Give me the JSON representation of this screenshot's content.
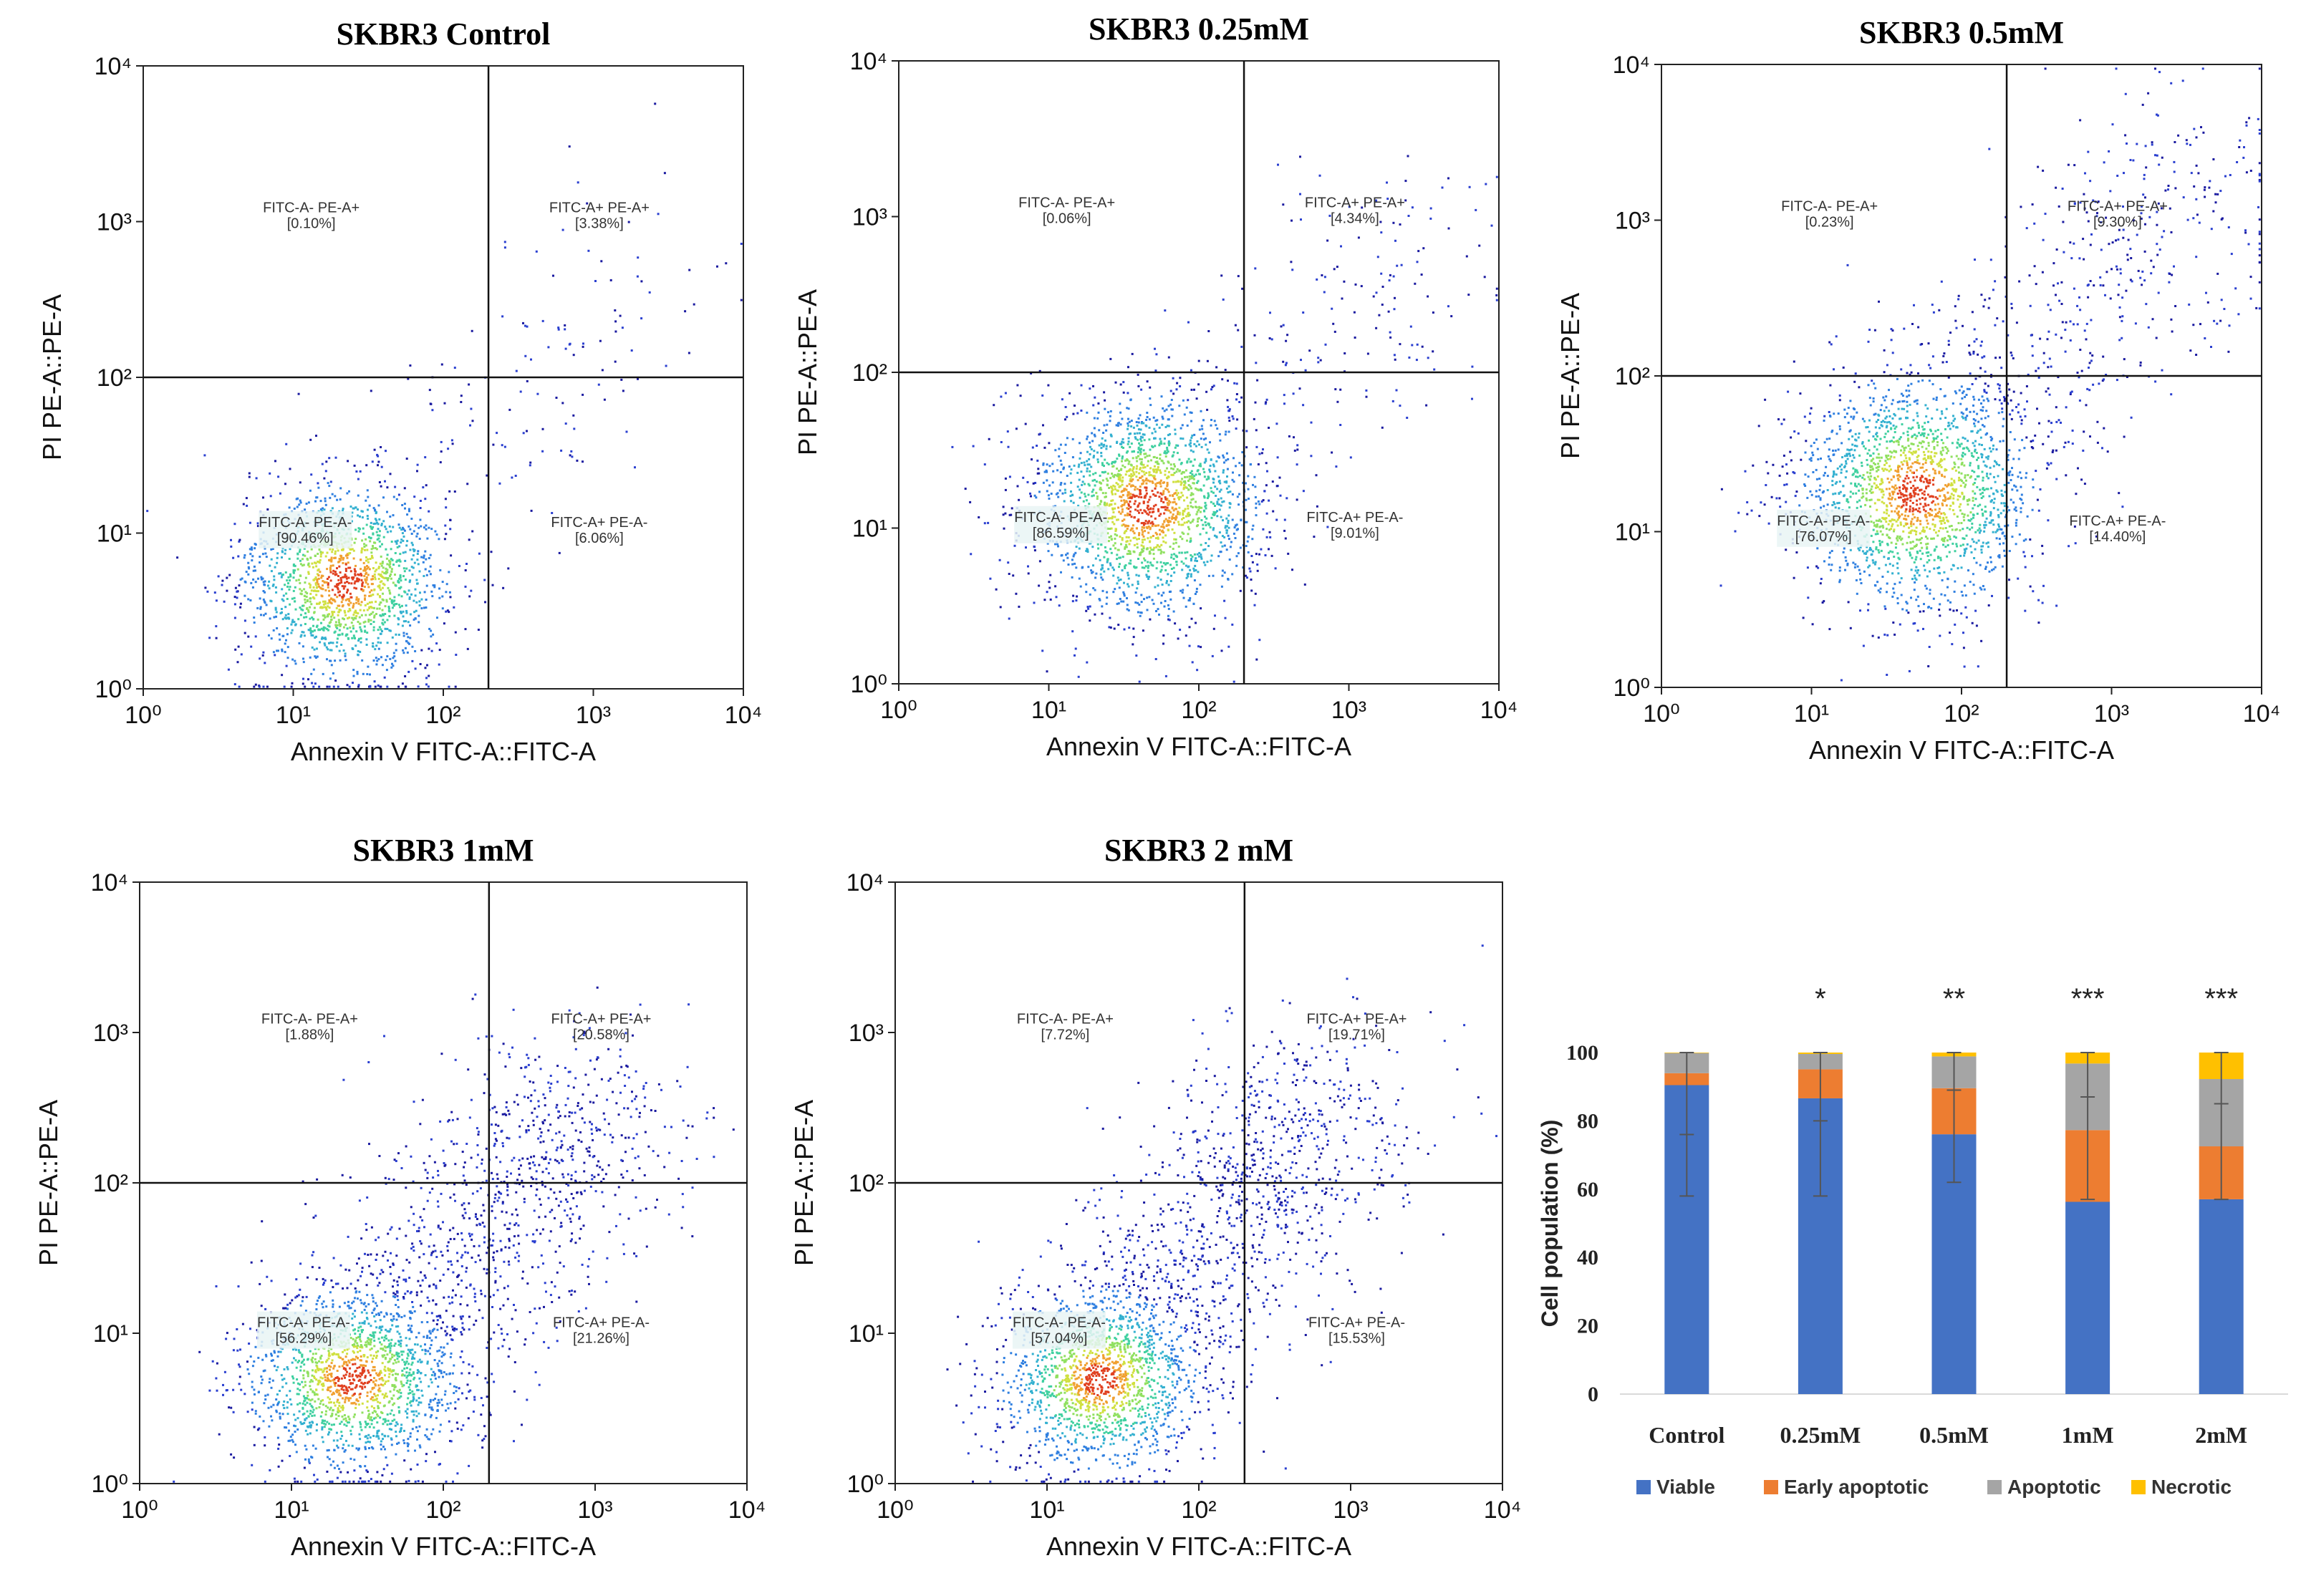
{
  "chart_data": [
    {
      "type": "scatter",
      "title": "SKBR3 Control",
      "xlabel": "Annexin V FITC-A::FITC-A",
      "ylabel": "PI PE-A::PE-A",
      "x_scale": "log",
      "y_scale": "log",
      "xlim": [
        1,
        10000
      ],
      "ylim": [
        1,
        10000
      ],
      "x_ticks": [
        "10⁰",
        "10¹",
        "10²",
        "10³",
        "10⁴"
      ],
      "y_ticks": [
        "10⁰",
        "10¹",
        "10²",
        "10³",
        "10⁴"
      ],
      "gate": {
        "x": 200,
        "y": 100
      },
      "quadrants": [
        {
          "label": "FITC-A- PE-A+",
          "percent": "[0.10%]",
          "position": "top-left"
        },
        {
          "label": "FITC-A+ PE-A+",
          "percent": "[3.38%]",
          "position": "top-right"
        },
        {
          "label": "FITC-A- PE-A-",
          "percent": "[90.46%]",
          "position": "bottom-left"
        },
        {
          "label": "FITC-A+ PE-A-",
          "percent": "[6.06%]",
          "position": "bottom-right"
        }
      ],
      "cloud": {
        "center": [
          22,
          5
        ],
        "spread": [
          0.35,
          0.32
        ],
        "tail_to": [
          3000,
          600
        ],
        "tail_fraction": 0.08,
        "n": 1800
      }
    },
    {
      "type": "scatter",
      "title": "SKBR3 0.25mM",
      "xlabel": "Annexin V FITC-A::FITC-A",
      "ylabel": "PI PE-A::PE-A",
      "x_scale": "log",
      "y_scale": "log",
      "xlim": [
        1,
        10000
      ],
      "ylim": [
        1,
        10000
      ],
      "x_ticks": [
        "10⁰",
        "10¹",
        "10²",
        "10³",
        "10⁴"
      ],
      "y_ticks": [
        "10⁰",
        "10¹",
        "10²",
        "10³",
        "10⁴"
      ],
      "gate": {
        "x": 200,
        "y": 100
      },
      "quadrants": [
        {
          "label": "FITC-A- PE-A+",
          "percent": "[0.06%]",
          "position": "top-left"
        },
        {
          "label": "FITC-A+ PE-A+",
          "percent": "[4.34%]",
          "position": "top-right"
        },
        {
          "label": "FITC-A- PE-A-",
          "percent": "[86.59%]",
          "position": "bottom-left"
        },
        {
          "label": "FITC-A+ PE-A-",
          "percent": "[9.01%]",
          "position": "bottom-right"
        }
      ],
      "cloud": {
        "center": [
          45,
          14
        ],
        "spread": [
          0.38,
          0.36
        ],
        "tail_to": [
          4000,
          800
        ],
        "tail_fraction": 0.12,
        "n": 2200
      }
    },
    {
      "type": "scatter",
      "title": "SKBR3 0.5mM",
      "xlabel": "Annexin V FITC-A::FITC-A",
      "ylabel": "PI PE-A::PE-A",
      "x_scale": "log",
      "y_scale": "log",
      "xlim": [
        1,
        10000
      ],
      "ylim": [
        1,
        10000
      ],
      "x_ticks": [
        "10⁰",
        "10¹",
        "10²",
        "10³",
        "10⁴"
      ],
      "y_ticks": [
        "10⁰",
        "10¹",
        "10²",
        "10³",
        "10⁴"
      ],
      "gate": {
        "x": 200,
        "y": 100
      },
      "quadrants": [
        {
          "label": "FITC-A- PE-A+",
          "percent": "[0.23%]",
          "position": "top-left"
        },
        {
          "label": "FITC-A+ PE-A+",
          "percent": "[9.30%]",
          "position": "top-right"
        },
        {
          "label": "FITC-A- PE-A-",
          "percent": "[76.07%]",
          "position": "bottom-left"
        },
        {
          "label": "FITC-A+ PE-A-",
          "percent": "[14.40%]",
          "position": "bottom-right"
        }
      ],
      "cloud": {
        "center": [
          50,
          18
        ],
        "spread": [
          0.4,
          0.38
        ],
        "tail_to": [
          5000,
          3000
        ],
        "tail_fraction": 0.22,
        "n": 2400
      }
    },
    {
      "type": "scatter",
      "title": "SKBR3 1mM",
      "xlabel": "Annexin V FITC-A::FITC-A",
      "ylabel": "PI PE-A::PE-A",
      "x_scale": "log",
      "y_scale": "log",
      "xlim": [
        1,
        10000
      ],
      "ylim": [
        1,
        10000
      ],
      "x_ticks": [
        "10⁰",
        "10¹",
        "10²",
        "10³",
        "10⁴"
      ],
      "y_ticks": [
        "10⁰",
        "10¹",
        "10²",
        "10³",
        "10⁴"
      ],
      "gate": {
        "x": 200,
        "y": 100
      },
      "quadrants": [
        {
          "label": "FITC-A- PE-A+",
          "percent": "[1.88%]",
          "position": "top-left"
        },
        {
          "label": "FITC-A+ PE-A+",
          "percent": "[20.58%]",
          "position": "top-right"
        },
        {
          "label": "FITC-A- PE-A-",
          "percent": "[56.29%]",
          "position": "bottom-left"
        },
        {
          "label": "FITC-A+ PE-A-",
          "percent": "[21.26%]",
          "position": "bottom-right"
        }
      ],
      "cloud": {
        "center": [
          25,
          5
        ],
        "spread": [
          0.35,
          0.3
        ],
        "tail_to": [
          900,
          350
        ],
        "tail_fraction": 0.42,
        "n": 2600
      }
    },
    {
      "type": "scatter",
      "title": "SKBR3 2 mM",
      "xlabel": "Annexin V FITC-A::FITC-A",
      "ylabel": "PI PE-A::PE-A",
      "x_scale": "log",
      "y_scale": "log",
      "xlim": [
        1,
        10000
      ],
      "ylim": [
        1,
        10000
      ],
      "x_ticks": [
        "10⁰",
        "10¹",
        "10²",
        "10³",
        "10⁴"
      ],
      "y_ticks": [
        "10⁰",
        "10¹",
        "10²",
        "10³",
        "10⁴"
      ],
      "gate": {
        "x": 200,
        "y": 100
      },
      "quadrants": [
        {
          "label": "FITC-A- PE-A+",
          "percent": "[7.72%]",
          "position": "top-left"
        },
        {
          "label": "FITC-A+ PE-A+",
          "percent": "[19.71%]",
          "position": "top-right"
        },
        {
          "label": "FITC-A- PE-A-",
          "percent": "[57.04%]",
          "position": "bottom-left"
        },
        {
          "label": "FITC-A+ PE-A-",
          "percent": "[15.53%]",
          "position": "bottom-right"
        }
      ],
      "cloud": {
        "center": [
          22,
          5
        ],
        "spread": [
          0.33,
          0.3
        ],
        "tail_to": [
          700,
          400
        ],
        "tail_fraction": 0.42,
        "n": 2600
      }
    },
    {
      "type": "bar",
      "stacked": true,
      "categories": [
        "Control",
        "0.25mM",
        "0.5mM",
        "1mM",
        "2mM"
      ],
      "series": [
        {
          "name": "Viable",
          "color": "#4472C4",
          "values": [
            90.46,
            86.59,
            76.07,
            56.29,
            57.04
          ]
        },
        {
          "name": "Early apoptotic",
          "color": "#ED7D31",
          "values": [
            3.5,
            8.5,
            13.5,
            21.0,
            15.5
          ]
        },
        {
          "name": "Apoptotic",
          "color": "#A5A5A5",
          "values": [
            5.9,
            4.5,
            9.3,
            19.5,
            19.7
          ]
        },
        {
          "name": "Necrotic",
          "color": "#FFC000",
          "values": [
            0.14,
            0.41,
            1.13,
            3.21,
            7.76
          ]
        }
      ],
      "error_bars": [
        {
          "center": 76,
          "low": 58,
          "high": 100
        },
        {
          "center": 80,
          "low": 58,
          "high": 100
        },
        {
          "center": 89,
          "low": 62,
          "high": 100
        },
        {
          "center": 87,
          "low": 57,
          "high": 100
        },
        {
          "center": 85,
          "low": 57,
          "high": 100
        }
      ],
      "significance": [
        "",
        "*",
        "**",
        "***",
        "***"
      ],
      "ylabel": "Cell population  (%)",
      "ylim": [
        0,
        100
      ],
      "y_ticks": [
        0,
        20,
        40,
        60,
        80,
        100
      ],
      "legend": [
        "Viable",
        "Early apoptotic",
        "Apoptotic",
        "Necrotic"
      ]
    }
  ]
}
